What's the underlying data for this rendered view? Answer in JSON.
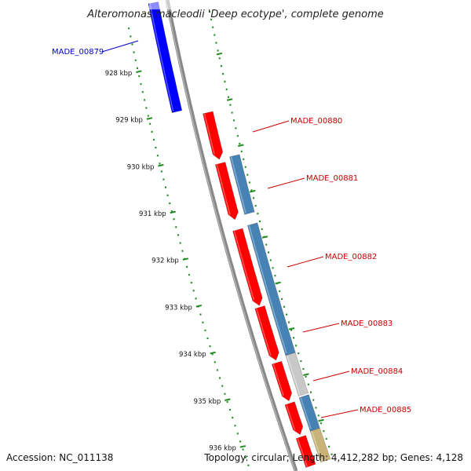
{
  "title": "Alteromonas macleodii 'Deep ecotype', complete genome",
  "footer": {
    "accession": "Accession: NC_011138",
    "topology": "Topology: circular; Length: 4,412,282 bp; Genes: 4,128"
  },
  "colors": {
    "forward_cds": "#ff0000",
    "reverse_cds": "#0000ff",
    "orf_blue": "#4682b4",
    "orf_grey": "#c8c8c8",
    "orf_tan": "#c8b478",
    "backbone": "#888888",
    "ticks": "#228b22",
    "label_fwd": "#cc0000",
    "label_rev": "#0000cc"
  },
  "ticks": [
    {
      "label": "928 kbp"
    },
    {
      "label": "929 kbp"
    },
    {
      "label": "930 kbp"
    },
    {
      "label": "931 kbp"
    },
    {
      "label": "932 kbp"
    },
    {
      "label": "933 kbp"
    },
    {
      "label": "934 kbp"
    },
    {
      "label": "935 kbp"
    },
    {
      "label": "936 kbp"
    }
  ],
  "genes": [
    {
      "name": "MADE_00879",
      "strand": "reverse"
    },
    {
      "name": "MADE_00880",
      "strand": "forward"
    },
    {
      "name": "MADE_00881",
      "strand": "forward"
    },
    {
      "name": "MADE_00882",
      "strand": "forward"
    },
    {
      "name": "MADE_00883",
      "strand": "forward"
    },
    {
      "name": "MADE_00884",
      "strand": "forward"
    },
    {
      "name": "MADE_00885",
      "strand": "forward"
    }
  ]
}
